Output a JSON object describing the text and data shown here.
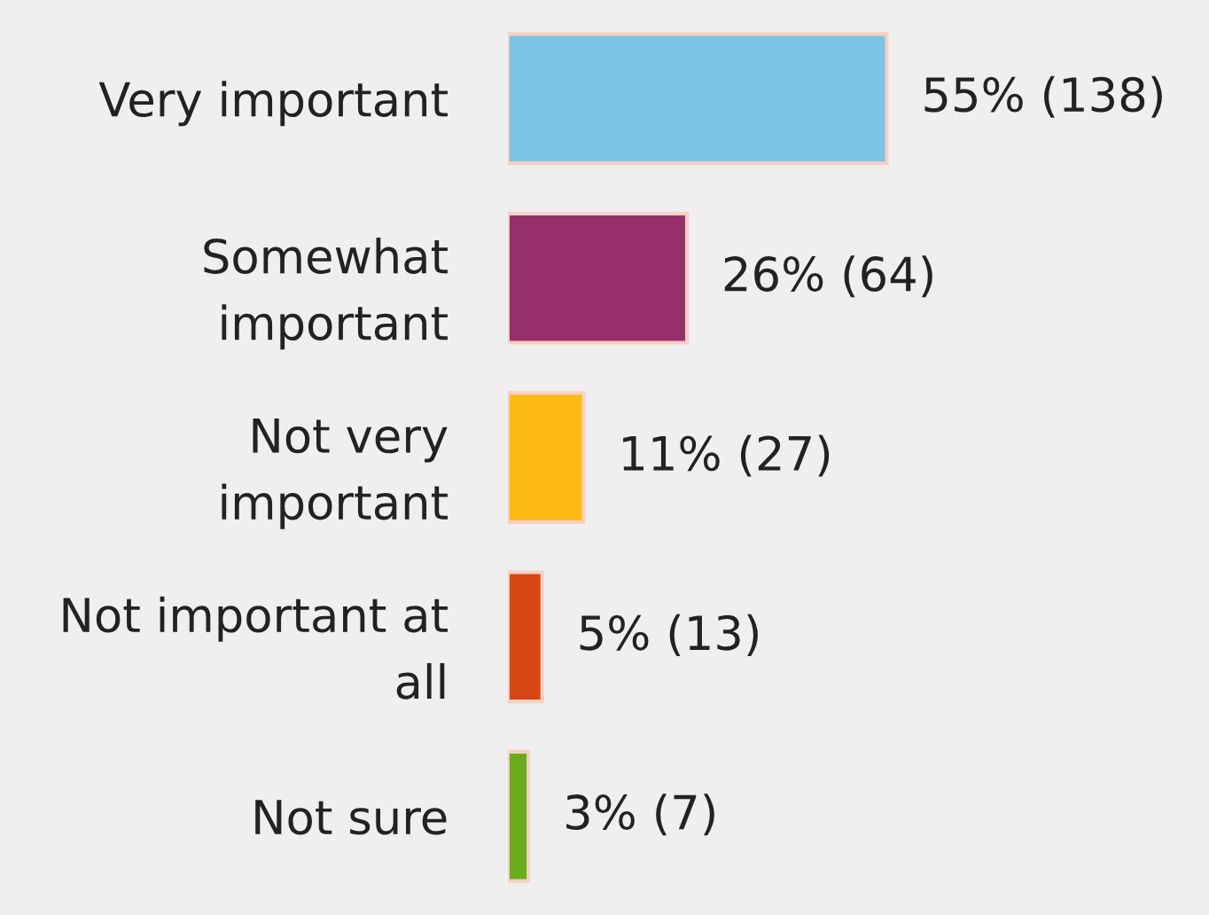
{
  "chart_data": {
    "type": "bar",
    "orientation": "horizontal",
    "categories": [
      "Very important",
      "Somewhat\nimportant",
      "Not very\nimportant",
      "Not important at\nall",
      "Not sure"
    ],
    "values": [
      55,
      26,
      11,
      5,
      3
    ],
    "colors": [
      "#7ac4e4",
      "#96306b",
      "#fdb912",
      "#d74515",
      "#6aad1a"
    ],
    "value_labels": [
      "55% (138)",
      "26% (64)",
      "11% (27)",
      "5% (13)",
      "3% (7)"
    ],
    "grid": false,
    "legend": false
  }
}
